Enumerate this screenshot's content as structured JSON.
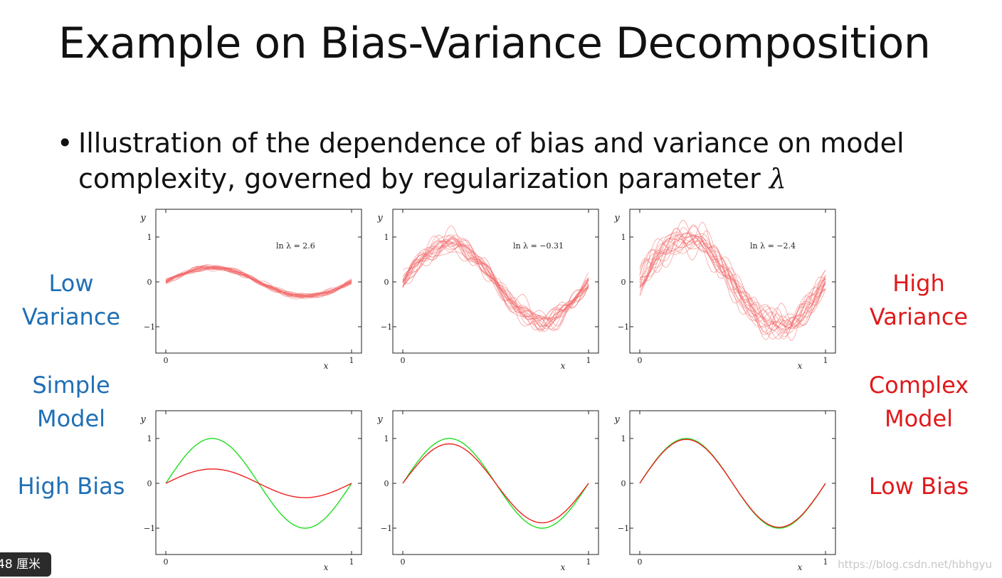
{
  "slide": {
    "title": "Example on Bias-Variance Decomposition",
    "bullet_text": "Illustration of the dependence of bias and variance on model complexity, governed by regularization parameter",
    "bullet_symbol": "λ"
  },
  "labels": {
    "low_variance": "Low\nVariance",
    "simple_model": "Simple\nModel",
    "high_bias": "High Bias",
    "high_variance": "High\nVariance",
    "complex_model": "Complex\nModel",
    "low_bias": "Low Bias"
  },
  "overlay": {
    "badge": "48 厘米",
    "watermark": "https://blog.csdn.net/hbhgyu"
  },
  "colors": {
    "fit_red": "#ee2020",
    "fit_red_light": "#f26a6a",
    "truth_green": "#22dd22",
    "left_blue": "#1f6fb5",
    "right_red": "#e0191b"
  },
  "chart_data": [
    {
      "type": "line",
      "role": "variance",
      "annotation": "ln λ = 2.6",
      "xlabel": "x",
      "ylabel": "y",
      "xticks": [
        "0",
        "1"
      ],
      "yticks": [
        "1",
        "0",
        "−1"
      ],
      "xlim": [
        0,
        1
      ],
      "ylim": [
        -1.6,
        1.6
      ],
      "fit_amplitude": 0.32,
      "n_fits": 20,
      "noise": 0.045
    },
    {
      "type": "line",
      "role": "variance",
      "annotation": "ln λ = −0.31",
      "xlabel": "x",
      "ylabel": "y",
      "xticks": [
        "0",
        "1"
      ],
      "yticks": [
        "1",
        "0",
        "−1"
      ],
      "xlim": [
        0,
        1
      ],
      "ylim": [
        -1.6,
        1.6
      ],
      "fit_amplitude": 0.86,
      "n_fits": 20,
      "noise": 0.16
    },
    {
      "type": "line",
      "role": "variance",
      "annotation": "ln λ = −2.4",
      "xlabel": "x",
      "ylabel": "y",
      "xticks": [
        "0",
        "1"
      ],
      "yticks": [
        "1",
        "0",
        "−1"
      ],
      "xlim": [
        0,
        1
      ],
      "ylim": [
        -1.6,
        1.6
      ],
      "fit_amplitude": 0.98,
      "n_fits": 20,
      "noise": 0.24
    },
    {
      "type": "line",
      "role": "bias",
      "xlabel": "x",
      "ylabel": "y",
      "xticks": [
        "0",
        "1"
      ],
      "yticks": [
        "1",
        "0",
        "−1"
      ],
      "xlim": [
        0,
        1
      ],
      "ylim": [
        -1.6,
        1.6
      ],
      "series": [
        {
          "name": "true function",
          "color": "truth_green",
          "amplitude": 1.0
        },
        {
          "name": "average fit",
          "color": "fit_red",
          "amplitude": 0.32
        }
      ]
    },
    {
      "type": "line",
      "role": "bias",
      "xlabel": "x",
      "ylabel": "y",
      "xticks": [
        "0",
        "1"
      ],
      "yticks": [
        "1",
        "0",
        "−1"
      ],
      "xlim": [
        0,
        1
      ],
      "ylim": [
        -1.6,
        1.6
      ],
      "series": [
        {
          "name": "true function",
          "color": "truth_green",
          "amplitude": 1.0
        },
        {
          "name": "average fit",
          "color": "fit_red",
          "amplitude": 0.88
        }
      ]
    },
    {
      "type": "line",
      "role": "bias",
      "xlabel": "x",
      "ylabel": "y",
      "xticks": [
        "0",
        "1"
      ],
      "yticks": [
        "1",
        "0",
        "−1"
      ],
      "xlim": [
        0,
        1
      ],
      "ylim": [
        -1.6,
        1.6
      ],
      "series": [
        {
          "name": "true function",
          "color": "truth_green",
          "amplitude": 1.0
        },
        {
          "name": "average fit",
          "color": "fit_red",
          "amplitude": 0.98
        }
      ]
    }
  ]
}
